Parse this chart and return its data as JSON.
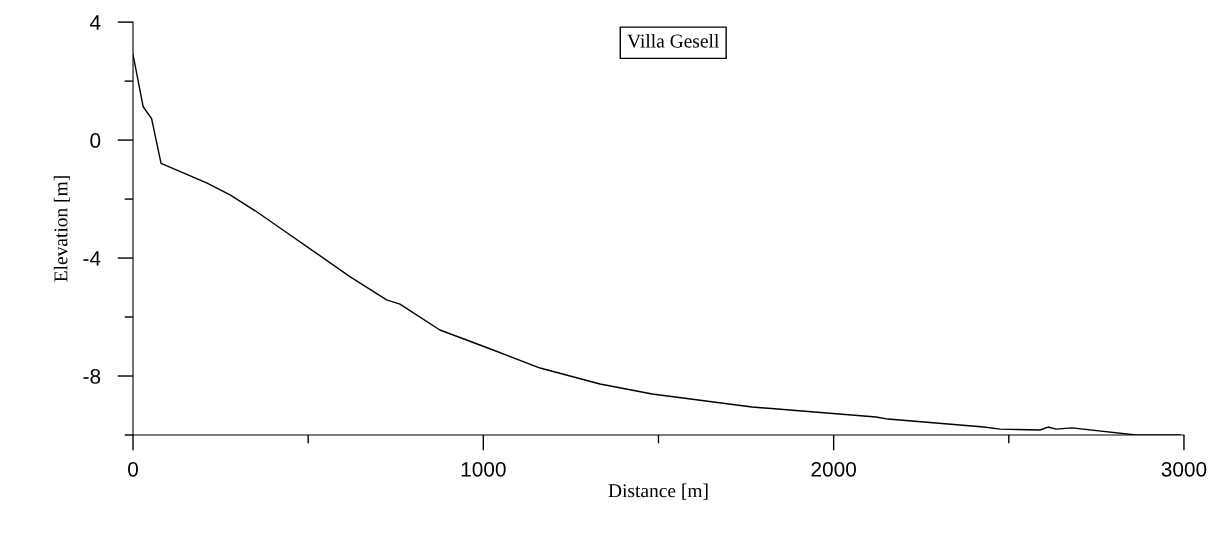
{
  "chart_data": {
    "type": "line",
    "title": "Villa Gesell",
    "xlabel": "Distance [m]",
    "ylabel": "Elevation [m]",
    "x": [
      0,
      29,
      53,
      80,
      210,
      277,
      353,
      428,
      524,
      619,
      724,
      762,
      876,
      1013,
      1162,
      1333,
      1482,
      1767,
      2121,
      2155,
      2429,
      2475,
      2589,
      2612,
      2635,
      2680,
      2863,
      2989
    ],
    "series": [
      {
        "color": "#000000",
        "values": [
          2.9,
          1.13,
          0.73,
          -0.79,
          -1.45,
          -1.86,
          -2.43,
          -3.05,
          -3.84,
          -4.63,
          -5.42,
          -5.56,
          -6.44,
          -7.05,
          -7.73,
          -8.27,
          -8.61,
          -9.05,
          -9.39,
          -9.46,
          -9.73,
          -9.8,
          -9.83,
          -9.73,
          -9.8,
          -9.76,
          -10.0,
          -10.0
        ]
      }
    ],
    "xlim": [
      0,
      3000
    ],
    "ylim": [
      -10,
      4
    ],
    "xticks": [
      0,
      {
        "value": 500,
        "label": null
      },
      1000,
      {
        "value": 1500,
        "label": null
      },
      2000,
      {
        "value": 2500,
        "label": null
      },
      3000
    ],
    "yticks": [
      4,
      {
        "value": 2,
        "label": null
      },
      0,
      {
        "value": -2,
        "label": null
      },
      -4,
      {
        "value": -6,
        "label": null
      },
      -8,
      {
        "value": -10,
        "label": null
      }
    ],
    "grid": false,
    "legend": false,
    "marker": "none",
    "line_style": "solid"
  }
}
